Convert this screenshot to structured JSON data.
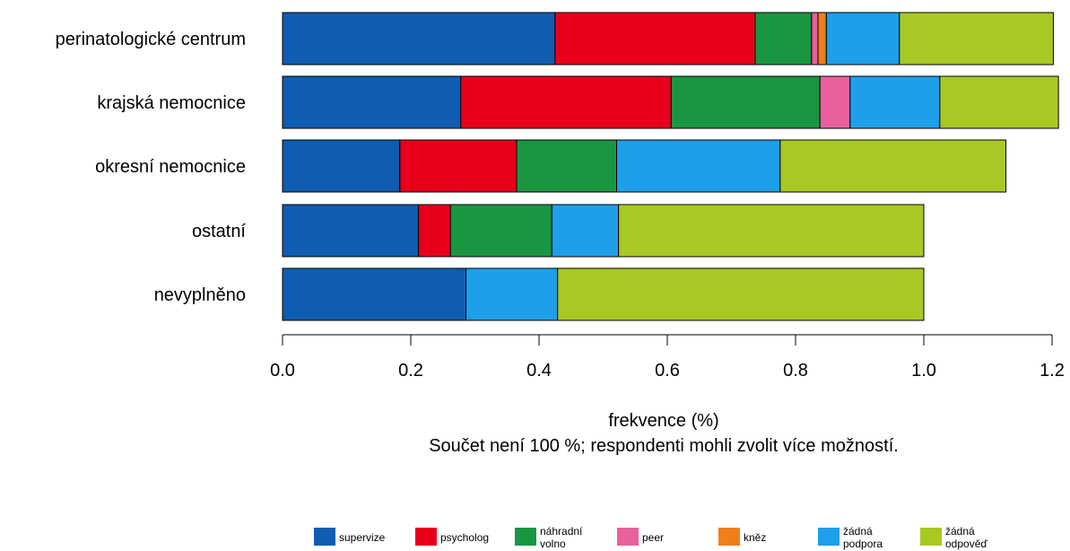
{
  "chart_data": {
    "type": "bar",
    "orientation": "horizontal",
    "stacked": true,
    "categories": [
      "perinatologické centrum",
      "krajská nemocnice",
      "okresní nemocnice",
      "ostatní",
      "nevyplněno"
    ],
    "series": [
      {
        "name": "supervize",
        "color": "#0f5cb1",
        "values": [
          0.425,
          0.278,
          0.183,
          0.212,
          0.286
        ]
      },
      {
        "name": "psycholog",
        "color": "#e8001b",
        "values": [
          0.312,
          0.328,
          0.182,
          0.05,
          0.0
        ]
      },
      {
        "name": "náhradní volno",
        "color": "#1a9641",
        "values": [
          0.088,
          0.232,
          0.156,
          0.158,
          0.0
        ]
      },
      {
        "name": "peer",
        "color": "#e8609c",
        "values": [
          0.01,
          0.047,
          0.0,
          0.0,
          0.0
        ]
      },
      {
        "name": "kněz",
        "color": "#f07f1a",
        "values": [
          0.013,
          0.0,
          0.0,
          0.0,
          0.0
        ]
      },
      {
        "name": "žádná podpora",
        "color": "#1e9fea",
        "values": [
          0.114,
          0.14,
          0.255,
          0.104,
          0.143
        ]
      },
      {
        "name": "žádná odpověď",
        "color": "#a8c924",
        "values": [
          0.24,
          0.185,
          0.352,
          0.476,
          0.571
        ]
      }
    ],
    "xlim": [
      0.0,
      1.2
    ],
    "xticks": [
      "0.0",
      "0.2",
      "0.4",
      "0.6",
      "0.8",
      "1.0",
      "1.2"
    ],
    "xlabel": "frekvence (%)",
    "note": "Součet není 100 %; respondenti mohli zvolit více možností.",
    "legend_position": "bottom",
    "grid": false
  }
}
